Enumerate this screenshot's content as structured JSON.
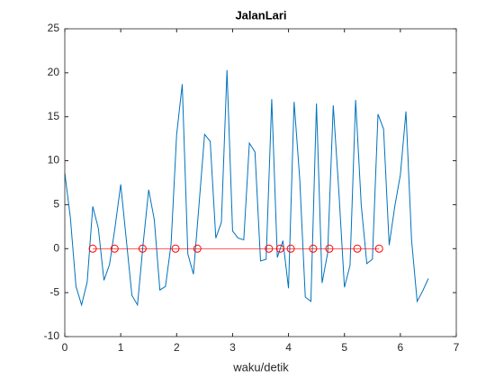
{
  "chart_data": {
    "type": "line",
    "title": "JalanLari",
    "x_label": "waku/detik",
    "xlim": [
      0,
      7
    ],
    "xticks": [
      0,
      1,
      2,
      3,
      4,
      5,
      6,
      7
    ],
    "ylim": [
      -10,
      25
    ],
    "yticks": [
      -10,
      -5,
      0,
      5,
      10,
      15,
      20,
      25
    ],
    "grid": false,
    "series": [
      {
        "color": "#0072bd",
        "marker": "none",
        "x": [
          0,
          0.1,
          0.2,
          0.3,
          0.4,
          0.5,
          0.6,
          0.7,
          0.8,
          0.9,
          1.0,
          1.1,
          1.2,
          1.3,
          1.4,
          1.5,
          1.6,
          1.7,
          1.8,
          1.9,
          2.0,
          2.1,
          2.2,
          2.3,
          2.4,
          2.5,
          2.6,
          2.7,
          2.8,
          2.9,
          3.0,
          3.1,
          3.2,
          3.3,
          3.4,
          3.5,
          3.6,
          3.7,
          3.8,
          3.9,
          4.0,
          4.1,
          4.2,
          4.3,
          4.4,
          4.5,
          4.6,
          4.7,
          4.8,
          4.9,
          5.0,
          5.1,
          5.2,
          5.3,
          5.4,
          5.5,
          5.6,
          5.7,
          5.8,
          5.9,
          6.0,
          6.1,
          6.2,
          6.3,
          6.4,
          6.5
        ],
        "values": [
          8.6,
          3.5,
          -4.3,
          -6.4,
          -3.8,
          4.8,
          2.3,
          -3.6,
          -1.8,
          2.5,
          7.3,
          1,
          -5.3,
          -6.4,
          0.5,
          6.7,
          3.3,
          -4.7,
          -4.3,
          0.5,
          13,
          18.7,
          -0.6,
          -2.9,
          5,
          13,
          12.2,
          1.2,
          3,
          20.3,
          2,
          1.2,
          1,
          12,
          11,
          -1.4,
          -1.2,
          17,
          -1,
          0.9,
          -4.5,
          16.7,
          8,
          -5.5,
          -6,
          16.5,
          -3.9,
          -0.5,
          16.3,
          6.5,
          -4.4,
          -1.9,
          16.9,
          5,
          -1.7,
          -1.2,
          15.3,
          13.6,
          0.4,
          4.8,
          8.4,
          15.6,
          1,
          -6,
          -4.8,
          -3.4
        ]
      },
      {
        "color": "#ff0000",
        "marker": "o",
        "x": [
          0.5,
          0.89,
          1.39,
          1.98,
          2.37,
          3.65,
          3.85,
          4.04,
          4.44,
          4.73,
          5.23,
          5.62
        ],
        "values": [
          0,
          0,
          0,
          0,
          0,
          0,
          0,
          0,
          0,
          0,
          0,
          0
        ]
      }
    ]
  }
}
